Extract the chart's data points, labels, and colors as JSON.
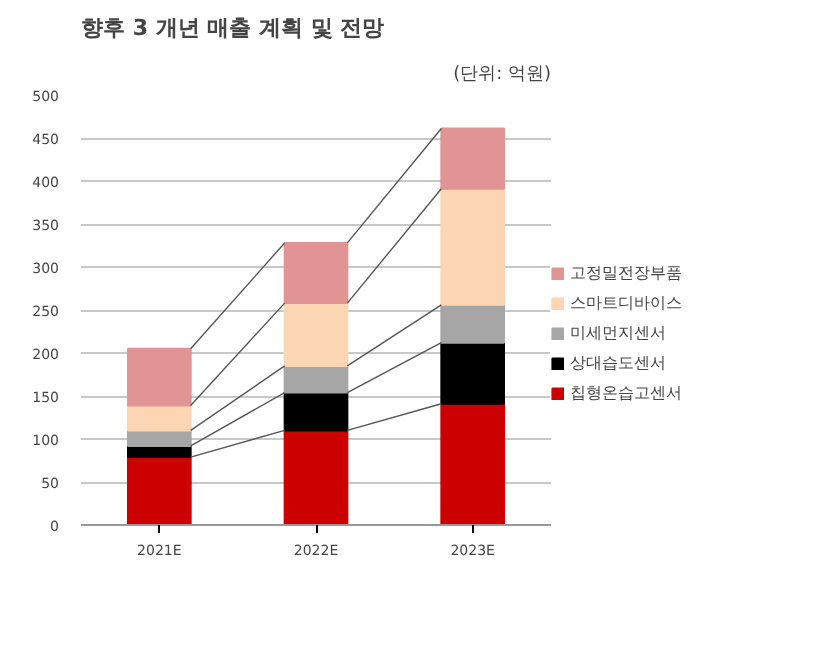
{
  "chart_data": {
    "type": "bar",
    "title": "향후 3 개년 매출 계획 및 전망",
    "annotations": [
      "(단위: 억원)"
    ],
    "categories": [
      "2021E",
      "2022E",
      "2023E"
    ],
    "stacked": true,
    "series": [
      {
        "name": "칩형온습고센서",
        "color": "#cc0000",
        "values": [
          79,
          110,
          141
        ]
      },
      {
        "name": "상대습도센서",
        "color": "#000000",
        "values": [
          13,
          44,
          71
        ]
      },
      {
        "name": "미세먼지센서",
        "color": "#a6a6a6",
        "values": [
          18,
          31,
          44
        ]
      },
      {
        "name": "스마트디바이스",
        "color": "#fcd5b4",
        "values": [
          29,
          73,
          135
        ]
      },
      {
        "name": "고정밀전장부품",
        "color": "#e09494",
        "values": [
          66,
          70,
          70
        ]
      }
    ],
    "ylim": [
      0,
      500
    ],
    "yticks": [
      0,
      50,
      100,
      150,
      200,
      250,
      300,
      350,
      400,
      450,
      500
    ],
    "grid": "y",
    "legend": "right"
  }
}
